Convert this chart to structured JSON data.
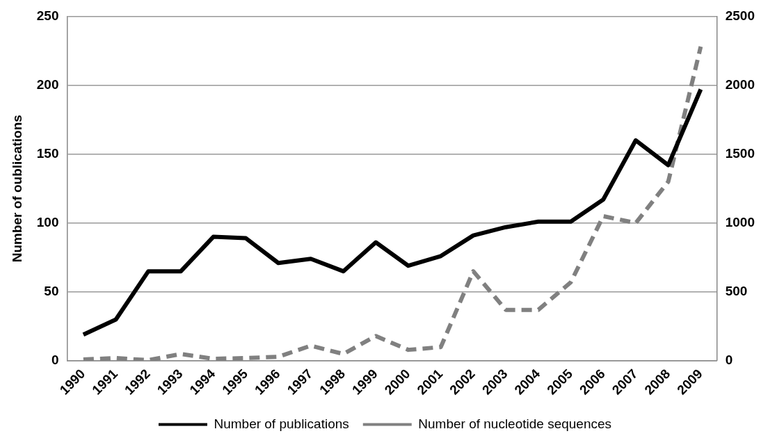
{
  "chart_data": {
    "type": "line",
    "ylabel": "Number of oublications",
    "categories": [
      "1990",
      "1991",
      "1992",
      "1993",
      "1994",
      "1995",
      "1996",
      "1997",
      "1998",
      "1999",
      "2000",
      "2001",
      "2002",
      "2003",
      "2004",
      "2005",
      "2006",
      "2007",
      "2008",
      "2009"
    ],
    "series": [
      {
        "name": "Number of publications",
        "color": "#000000",
        "line_style": "solid",
        "values": [
          19,
          30,
          65,
          65,
          90,
          89,
          71,
          74,
          65,
          86,
          69,
          76,
          91,
          97,
          101,
          101,
          117,
          160,
          142,
          197
        ]
      },
      {
        "name": "Number of nucleotide sequences",
        "color": "#808080",
        "line_style": "dashed",
        "axis": "y2",
        "values": [
          10,
          20,
          5,
          50,
          15,
          20,
          30,
          110,
          50,
          180,
          80,
          100,
          650,
          370,
          370,
          570,
          1050,
          1000,
          1300,
          2280
        ]
      }
    ],
    "ylim": [
      0,
      250
    ],
    "yticks": [
      0,
      50,
      100,
      150,
      200,
      250
    ],
    "y2lim": [
      0,
      2500
    ],
    "y2ticks": [
      0,
      500,
      1000,
      1500,
      2000,
      2500
    ],
    "grid": "y",
    "legend": "bottom",
    "marker": "none"
  }
}
